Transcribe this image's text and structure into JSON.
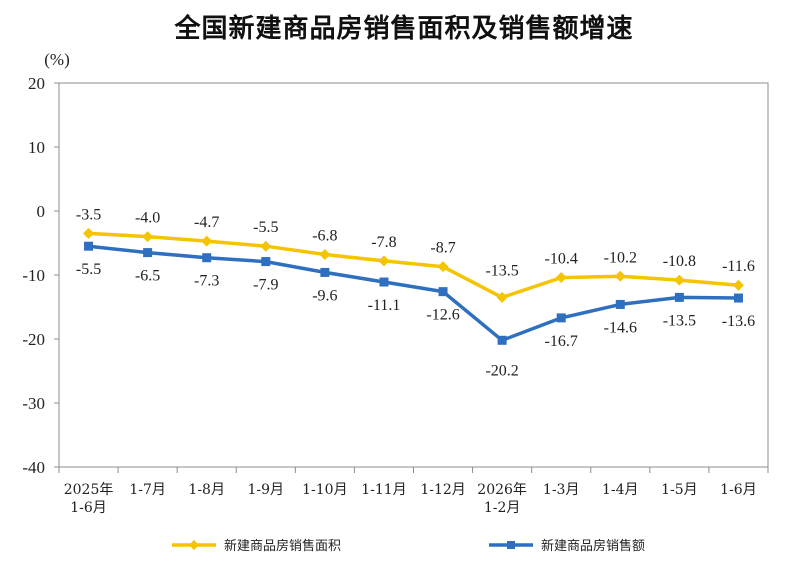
{
  "chart_data": {
    "type": "line",
    "title": "全国新建商品房销售面积及销售额增速",
    "unit_label": "(%)",
    "ylim": [
      -40,
      20
    ],
    "yticks": [
      "20",
      "10",
      "0",
      "-10",
      "-20",
      "-30",
      "-40"
    ],
    "yticks_values": [
      20,
      10,
      0,
      -10,
      -20,
      -30,
      -40
    ],
    "categories": [
      [
        "2025年",
        "1-6月"
      ],
      [
        "1-7月"
      ],
      [
        "1-8月"
      ],
      [
        "1-9月"
      ],
      [
        "1-10月"
      ],
      [
        "1-11月"
      ],
      [
        "1-12月"
      ],
      [
        "2026年",
        "1-2月"
      ],
      [
        "1-3月"
      ],
      [
        "1-4月"
      ],
      [
        "1-5月"
      ],
      [
        "1-6月"
      ]
    ],
    "series": [
      {
        "name": "新建商品房销售面积",
        "color": "#F5C400",
        "marker": "diamond",
        "values": [
          -3.5,
          -4.0,
          -4.7,
          -5.5,
          -6.8,
          -7.8,
          -8.7,
          -13.5,
          -10.4,
          -10.2,
          -10.8,
          -11.6
        ],
        "labels": [
          "-3.5",
          "-4.0",
          "-4.7",
          "-5.5",
          "-6.8",
          "-7.8",
          "-8.7",
          "-13.5",
          "-10.4",
          "-10.2",
          "-10.8",
          "-11.6"
        ]
      },
      {
        "name": "新建商品房销售额",
        "color": "#2E6FC0",
        "marker": "square",
        "values": [
          -5.5,
          -6.5,
          -7.3,
          -7.9,
          -9.6,
          -11.1,
          -12.6,
          -20.2,
          -16.7,
          -14.6,
          -13.5,
          -13.6
        ],
        "labels": [
          "-5.5",
          "-6.5",
          "-7.3",
          "-7.9",
          "-9.6",
          "-11.1",
          "-12.6",
          "-20.2",
          "-16.7",
          "-14.6",
          "-13.5",
          "-13.6"
        ]
      }
    ],
    "legend_position": "bottom",
    "grid": false
  }
}
